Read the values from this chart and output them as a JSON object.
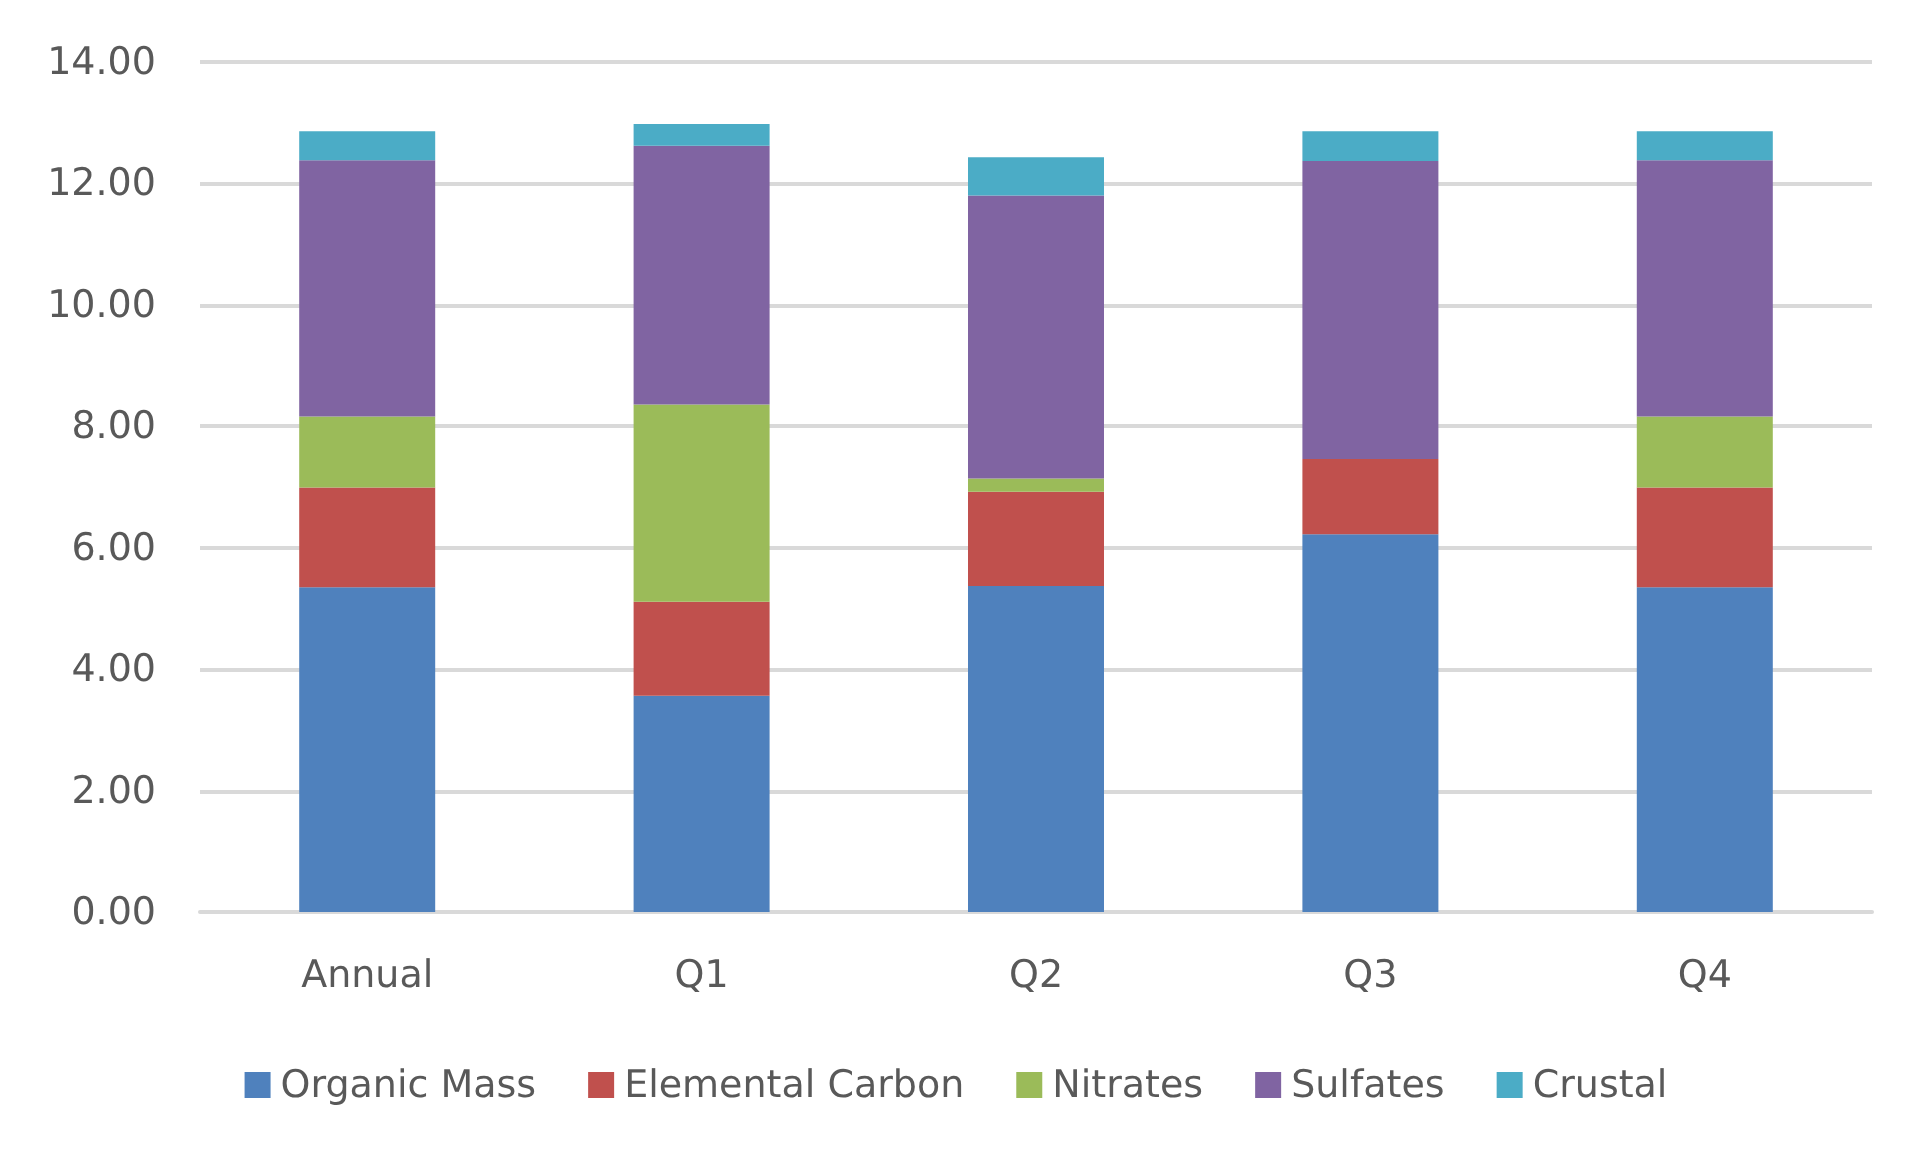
{
  "chart_data": {
    "type": "bar",
    "stacked": true,
    "categories": [
      "Annual",
      "Q1",
      "Q2",
      "Q3",
      "Q4"
    ],
    "series": [
      {
        "name": "Organic Mass",
        "color": "#4f81bd",
        "values": [
          5.35,
          3.56,
          5.37,
          6.22,
          5.35
        ]
      },
      {
        "name": "Elemental Carbon",
        "color": "#c0504d",
        "values": [
          1.64,
          1.55,
          1.55,
          1.24,
          1.64
        ]
      },
      {
        "name": "Nitrates",
        "color": "#9bbb59",
        "values": [
          1.17,
          3.25,
          0.22,
          0,
          1.17
        ]
      },
      {
        "name": "Sulfates",
        "color": "#8064a2",
        "values": [
          4.22,
          4.26,
          4.66,
          4.91,
          4.22
        ]
      },
      {
        "name": "Crustal",
        "color": "#4bacc6",
        "values": [
          0.48,
          0.36,
          0.63,
          0.49,
          0.48
        ]
      }
    ],
    "ylim": [
      0,
      14
    ],
    "yticks": [
      {
        "value": 0,
        "label": "0.00"
      },
      {
        "value": 2,
        "label": "2.00"
      },
      {
        "value": 4,
        "label": "4.00"
      },
      {
        "value": 6,
        "label": "6.00"
      },
      {
        "value": 8,
        "label": "8.00"
      },
      {
        "value": 10,
        "label": "10.00"
      },
      {
        "value": 12,
        "label": "12.00"
      },
      {
        "value": 14,
        "label": "14.00"
      }
    ],
    "grid": "y",
    "legend": "bottom"
  }
}
